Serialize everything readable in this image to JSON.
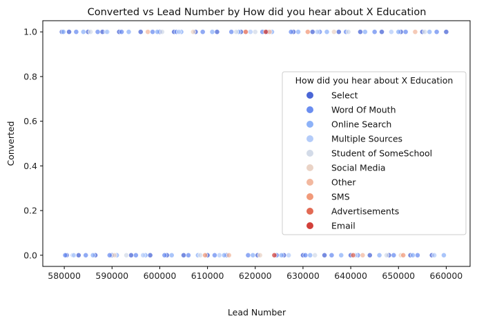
{
  "chart_data": {
    "type": "scatter",
    "title": "Converted vs Lead Number by How did you hear about X Education",
    "xlabel": "Lead Number",
    "ylabel": "Converted",
    "xlim": [
      575500,
      665000
    ],
    "ylim": [
      -0.05,
      1.05
    ],
    "xticks": [
      580000,
      590000,
      600000,
      610000,
      620000,
      630000,
      640000,
      650000,
      660000
    ],
    "yticks": [
      0.0,
      0.2,
      0.4,
      0.6,
      0.8,
      1.0
    ],
    "xtick_labels": [
      "580000",
      "590000",
      "600000",
      "610000",
      "620000",
      "630000",
      "640000",
      "650000",
      "660000"
    ],
    "ytick_labels": [
      "0.0",
      "0.2",
      "0.4",
      "0.6",
      "0.8",
      "1.0"
    ],
    "grid": false,
    "legend": {
      "title": "How did you hear about X Education",
      "placement": "center-right",
      "entries": [
        "Select",
        "Word Of Mouth",
        "Online Search",
        "Multiple Sources",
        "Student of SomeSchool",
        "Social Media",
        "Other",
        "SMS",
        "Advertisements",
        "Email"
      ]
    },
    "series_colors": [
      "#4a66d6",
      "#6b8ef0",
      "#8db2f8",
      "#b4ccf9",
      "#d3dbe8",
      "#ead3c6",
      "#f2b89f",
      "#f19a7a",
      "#e26a54",
      "#d2403a"
    ],
    "series": [
      {
        "name": "Select",
        "x": [
          579500,
          580500,
          581000,
          583000,
          585000,
          586500,
          588000,
          590000,
          591500,
          594000,
          596000,
          598000,
          600000,
          601500,
          603000,
          605000,
          607500,
          610000,
          612000,
          614000,
          617000,
          620500,
          622500,
          626000,
          628000,
          630000,
          632000,
          634500,
          637500,
          640000,
          642000,
          644000,
          646500,
          648000,
          650500,
          652500,
          655000,
          657000,
          660000
        ],
        "y": [
          1,
          0,
          1,
          0,
          1,
          0,
          1,
          0,
          1,
          0,
          1,
          0,
          1,
          0,
          1,
          0,
          1,
          0,
          1,
          0,
          1,
          0,
          1,
          0,
          1,
          0,
          1,
          0,
          1,
          0,
          1,
          0,
          1,
          0,
          1,
          0,
          1,
          0,
          1
        ]
      },
      {
        "name": "Word Of Mouth",
        "x": [
          580200,
          582500,
          584500,
          587000,
          589500,
          592000,
          595000,
          598500,
          601000,
          603500,
          606000,
          609000,
          611500,
          615000,
          618500,
          621500,
          624500,
          627500,
          630500,
          633500,
          636000,
          639000,
          641500,
          645000,
          649000,
          651500,
          654000,
          658000
        ],
        "y": [
          0,
          1,
          0,
          1,
          0,
          1,
          0,
          1,
          0,
          1,
          0,
          1,
          0,
          1,
          0,
          1,
          0,
          1,
          0,
          1,
          0,
          1,
          0,
          1,
          0,
          1,
          0,
          1
        ]
      },
      {
        "name": "Online Search",
        "x": [
          579800,
          581800,
          584000,
          586000,
          588800,
          591000,
          593500,
          597000,
          599500,
          602500,
          604500,
          608000,
          611000,
          613500,
          616500,
          619500,
          623500,
          625500,
          629000,
          631500,
          635000,
          638000,
          643000,
          646000,
          650000,
          653000,
          656500,
          659500
        ],
        "y": [
          1,
          0,
          1,
          0,
          1,
          0,
          1,
          0,
          1,
          0,
          1,
          0,
          1,
          0,
          1,
          0,
          1,
          0,
          1,
          0,
          1,
          0,
          1,
          0,
          1,
          0,
          1,
          0
        ]
      },
      {
        "name": "Multiple Sources",
        "x": [
          582000,
          589000,
          596500,
          604000,
          612500,
          619000,
          627000,
          633000,
          641000,
          648500,
          657500
        ],
        "y": [
          0,
          1,
          0,
          1,
          0,
          1,
          0,
          1,
          0,
          1,
          0
        ]
      },
      {
        "name": "Student of SomeSchool",
        "x": [
          585500,
          593000,
          600500,
          608500,
          616000,
          620000,
          632500,
          639500,
          647500,
          655500
        ],
        "y": [
          1,
          0,
          1,
          0,
          1,
          1,
          0,
          1,
          0,
          1
        ]
      },
      {
        "name": "Social Media",
        "x": [
          590500,
          607000,
          621000,
          636500,
          650500
        ],
        "y": [
          0,
          1,
          0,
          1,
          0
        ]
      },
      {
        "name": "Other",
        "x": [
          597500,
          614500,
          623000,
          642500,
          653500
        ],
        "y": [
          1,
          0,
          1,
          0,
          1
        ]
      },
      {
        "name": "SMS",
        "x": [
          609500,
          631000,
          651000
        ],
        "y": [
          0,
          1,
          0
        ]
      },
      {
        "name": "Advertisements",
        "x": [
          618000,
          640500
        ],
        "y": [
          1,
          0
        ]
      },
      {
        "name": "Email",
        "x": [
          622200,
          624000
        ],
        "y": [
          1,
          0
        ]
      }
    ]
  }
}
